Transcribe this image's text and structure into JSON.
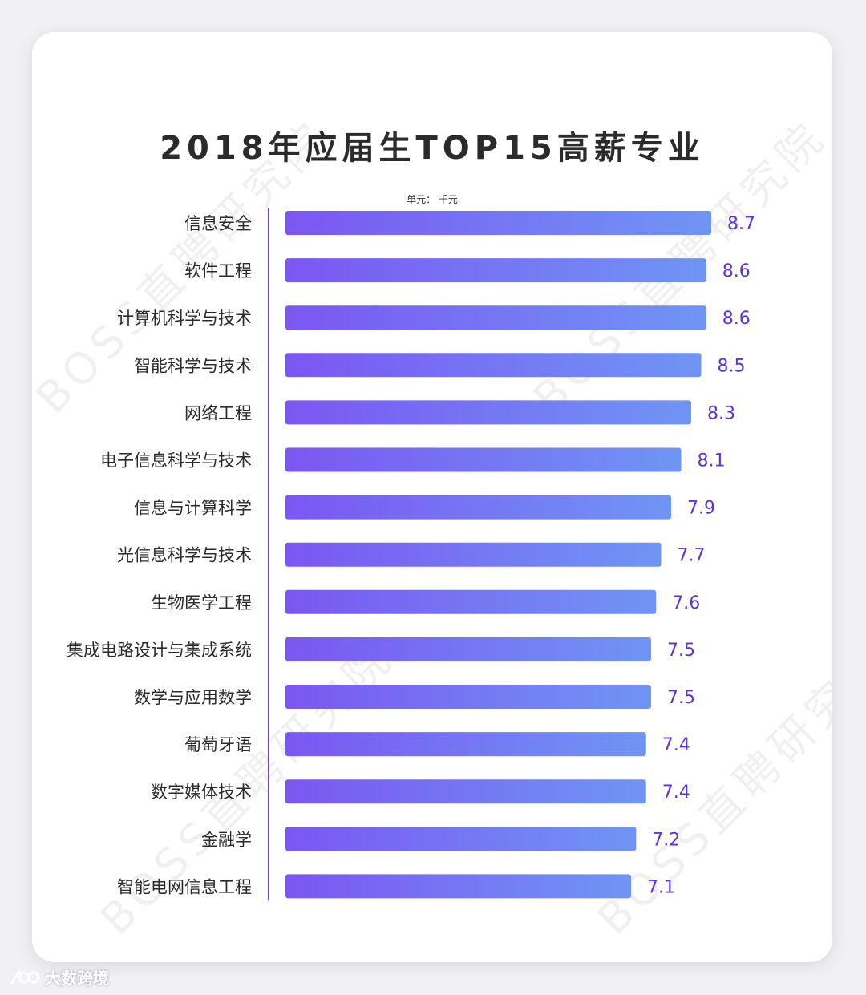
{
  "chart_data": {
    "type": "bar",
    "orientation": "horizontal",
    "title": "2018年应届生TOP15高薪专业",
    "unit": "单元： 千元",
    "categories": [
      "信息安全",
      "软件工程",
      "计算机科学与技术",
      "智能科学与技术",
      "网络工程",
      "电子信息科学与技术",
      "信息与计算科学",
      "光信息科学与技术",
      "生物医学工程",
      "集成电路设计与集成系统",
      "数学与应用数学",
      "葡萄牙语",
      "数字媒体技术",
      "金融学",
      "智能电网信息工程"
    ],
    "values": [
      8.7,
      8.6,
      8.6,
      8.5,
      8.3,
      8.1,
      7.9,
      7.7,
      7.6,
      7.5,
      7.5,
      7.4,
      7.4,
      7.2,
      7.1
    ],
    "value_labels": [
      "8.7",
      "8.6",
      "8.6",
      "8.5",
      "8.3",
      "8.1",
      "7.9",
      "7.7",
      "7.6",
      "7.5",
      "7.5",
      "7.4",
      "7.4",
      "7.2",
      "7.1"
    ],
    "grid": false,
    "legend": "none",
    "colors": {
      "bar_start": "#7b57f2",
      "bar_end": "#6f95f4",
      "value_label": "#5a34dc",
      "axis": "#6a3fd6",
      "category_label": "#2b2b2b"
    }
  },
  "watermark": "BOSS直聘研究院",
  "footer": {
    "brand": "大数跨境",
    "logo_icon": "chain-link-icon"
  }
}
